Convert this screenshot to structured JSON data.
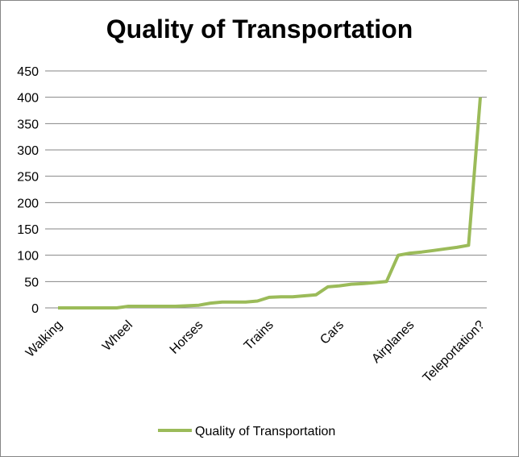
{
  "chart_data": {
    "type": "line",
    "title": "Quality of Transportation",
    "x": [
      "Walking",
      "",
      "",
      "",
      "",
      "",
      "Wheel",
      "",
      "",
      "",
      "",
      "",
      "Horses",
      "",
      "",
      "",
      "",
      "",
      "Trains",
      "",
      "",
      "",
      "",
      "",
      "Cars",
      "",
      "",
      "",
      "",
      "",
      "Airplanes",
      "",
      "",
      "",
      "",
      "",
      "Teleportation?"
    ],
    "series": [
      {
        "name": "Quality of Transportation",
        "values": [
          0,
          0,
          0,
          0,
          0,
          0,
          3,
          3,
          3,
          3,
          3,
          4,
          5,
          9,
          11,
          11,
          11,
          13,
          20,
          21,
          21,
          23,
          25,
          40,
          42,
          45,
          46,
          48,
          50,
          100,
          104,
          106,
          109,
          112,
          115,
          119,
          400
        ],
        "color": "#9BBB59"
      }
    ],
    "ylim": [
      0,
      450
    ],
    "yticks": [
      0,
      50,
      100,
      150,
      200,
      250,
      300,
      350,
      400,
      450
    ],
    "grid": true,
    "legend": "bottom",
    "xlabel": "",
    "ylabel": ""
  }
}
